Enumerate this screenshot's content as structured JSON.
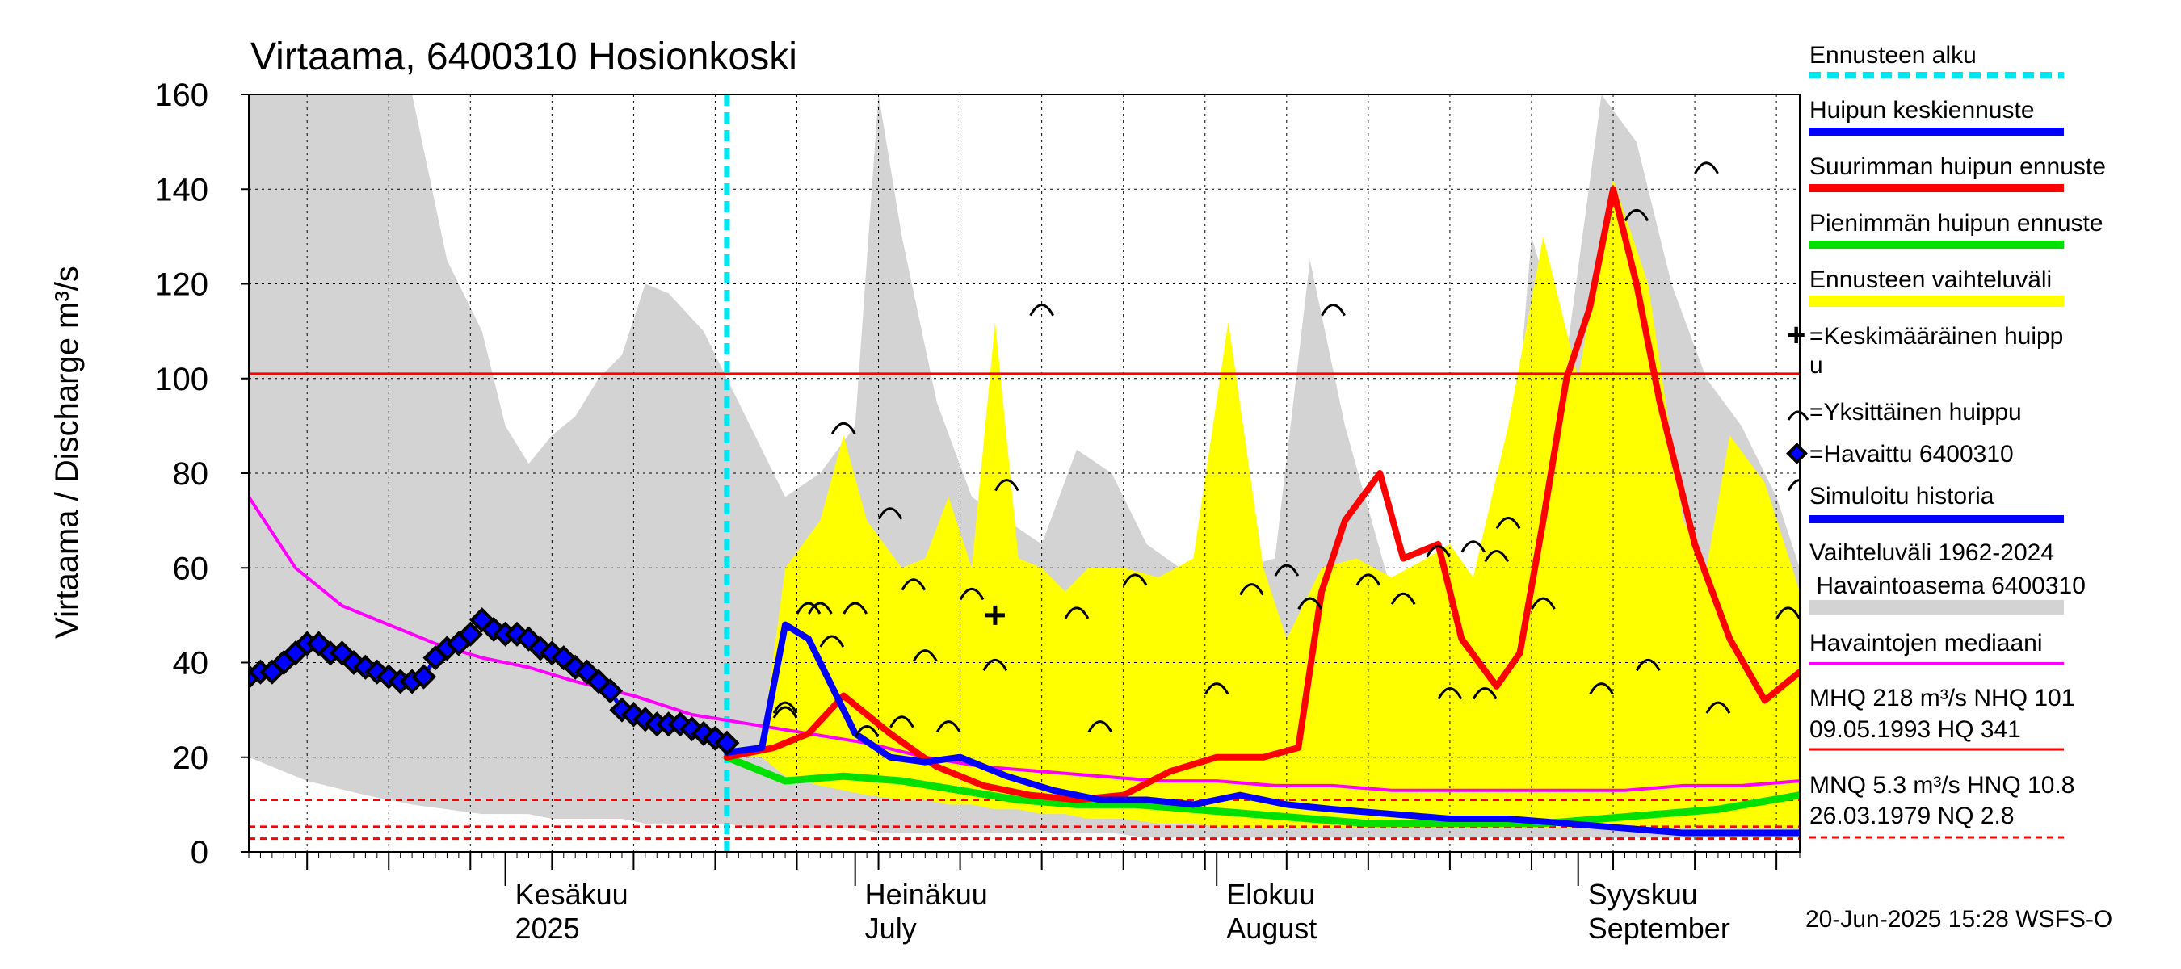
{
  "chart_data": {
    "type": "line",
    "title": "Virtaama, 6400310 Hosionkoski",
    "ylabel": "Virtaama / Discharge   m³/s",
    "ylim": [
      0,
      160
    ],
    "yticks": [
      0,
      20,
      40,
      60,
      80,
      100,
      120,
      140,
      160
    ],
    "x_range": [
      "2025-05-10",
      "2025-09-20"
    ],
    "grid": true,
    "forecast_start": "2025-06-20",
    "months": [
      {
        "date": "2025-06-01",
        "line1": "Kesäkuu",
        "line2": "2025"
      },
      {
        "date": "2025-07-01",
        "line1": "Heinäkuu",
        "line2": "July"
      },
      {
        "date": "2025-08-01",
        "line1": "Elokuu",
        "line2": "August"
      },
      {
        "date": "2025-09-01",
        "line1": "Syyskuu",
        "line2": "September"
      }
    ],
    "reference_lines": {
      "hq_solid": 101,
      "nq_dashed": [
        11,
        5.3,
        2.8
      ]
    },
    "series": [
      {
        "key": "history_range",
        "color": "#d3d3d3",
        "x": [
          "2025-05-10",
          "2025-05-15",
          "2025-05-20",
          "2025-05-24",
          "2025-05-27",
          "2025-05-30",
          "2025-06-01",
          "2025-06-03",
          "2025-06-05",
          "2025-06-07",
          "2025-06-09",
          "2025-06-11",
          "2025-06-13",
          "2025-06-15",
          "2025-06-18",
          "2025-06-20",
          "2025-06-22",
          "2025-06-25",
          "2025-06-28",
          "2025-07-01",
          "2025-07-03",
          "2025-07-05",
          "2025-07-08",
          "2025-07-11",
          "2025-07-14",
          "2025-07-17",
          "2025-07-20",
          "2025-07-23",
          "2025-07-26",
          "2025-07-30",
          "2025-08-03",
          "2025-08-06",
          "2025-08-09",
          "2025-08-12",
          "2025-08-16",
          "2025-08-20",
          "2025-08-24",
          "2025-08-26",
          "2025-08-28",
          "2025-08-31",
          "2025-09-03",
          "2025-09-06",
          "2025-09-09",
          "2025-09-12",
          "2025-09-15",
          "2025-09-18",
          "2025-09-20"
        ],
        "upper": [
          160,
          160,
          160,
          160,
          125,
          110,
          90,
          82,
          88,
          92,
          100,
          105,
          120,
          118,
          110,
          100,
          90,
          75,
          80,
          90,
          160,
          130,
          95,
          75,
          70,
          65,
          85,
          80,
          65,
          58,
          60,
          62,
          125,
          90,
          55,
          50,
          55,
          70,
          130,
          105,
          160,
          150,
          120,
          100,
          90,
          75,
          60
        ],
        "lower": [
          20,
          15,
          12,
          10,
          9,
          8,
          8,
          8,
          7,
          7,
          7,
          7,
          6,
          6,
          6,
          6,
          5,
          5,
          5,
          5,
          4,
          4,
          4,
          4,
          4,
          4,
          4,
          4,
          3,
          3,
          3,
          3,
          3,
          3,
          3,
          3,
          3,
          3,
          3,
          3,
          3,
          3,
          3,
          3,
          3,
          3,
          3
        ]
      },
      {
        "key": "forecast_range",
        "color": "#ffff00",
        "x": [
          "2025-06-20",
          "2025-06-23",
          "2025-06-25",
          "2025-06-28",
          "2025-06-30",
          "2025-07-02",
          "2025-07-05",
          "2025-07-07",
          "2025-07-09",
          "2025-07-11",
          "2025-07-13",
          "2025-07-15",
          "2025-07-17",
          "2025-07-19",
          "2025-07-21",
          "2025-07-24",
          "2025-07-27",
          "2025-07-30",
          "2025-08-02",
          "2025-08-05",
          "2025-08-07",
          "2025-08-10",
          "2025-08-13",
          "2025-08-16",
          "2025-08-19",
          "2025-08-21",
          "2025-08-23",
          "2025-08-26",
          "2025-08-29",
          "2025-09-01",
          "2025-09-04",
          "2025-09-07",
          "2025-09-10",
          "2025-09-12",
          "2025-09-14",
          "2025-09-17",
          "2025-09-20"
        ],
        "upper": [
          20,
          23,
          60,
          70,
          88,
          70,
          60,
          62,
          75,
          60,
          112,
          62,
          60,
          55,
          60,
          60,
          58,
          62,
          112,
          60,
          45,
          60,
          62,
          58,
          62,
          65,
          58,
          90,
          130,
          100,
          142,
          120,
          70,
          60,
          88,
          78,
          55
        ],
        "lower": [
          20,
          20,
          16,
          14,
          13,
          12,
          11,
          11,
          10,
          10,
          9,
          9,
          8,
          8,
          7,
          7,
          6,
          6,
          5,
          5,
          5,
          5,
          5,
          5,
          5,
          5,
          5,
          5,
          5,
          5,
          5,
          5,
          5,
          5,
          5,
          5,
          5
        ]
      },
      {
        "key": "observed_median",
        "color": "#ff00ff",
        "x": [
          "2025-05-10",
          "2025-05-14",
          "2025-05-18",
          "2025-05-22",
          "2025-05-26",
          "2025-05-30",
          "2025-06-03",
          "2025-06-07",
          "2025-06-12",
          "2025-06-17",
          "2025-06-22",
          "2025-06-27",
          "2025-07-02",
          "2025-07-07",
          "2025-07-12",
          "2025-07-17",
          "2025-07-22",
          "2025-07-27",
          "2025-08-01",
          "2025-08-06",
          "2025-08-11",
          "2025-08-16",
          "2025-08-21",
          "2025-08-26",
          "2025-08-31",
          "2025-09-05",
          "2025-09-10",
          "2025-09-15",
          "2025-09-20"
        ],
        "y": [
          75,
          60,
          52,
          48,
          44,
          41,
          39,
          36,
          33,
          29,
          27,
          25,
          23,
          20,
          18,
          17,
          16,
          15,
          15,
          14,
          14,
          13,
          13,
          13,
          13,
          13,
          14,
          14,
          15
        ]
      },
      {
        "key": "max_peak_forecast",
        "color": "#ff0000",
        "x": [
          "2025-06-20",
          "2025-06-24",
          "2025-06-27",
          "2025-06-30",
          "2025-07-04",
          "2025-07-08",
          "2025-07-12",
          "2025-07-16",
          "2025-07-20",
          "2025-07-24",
          "2025-07-28",
          "2025-08-01",
          "2025-08-05",
          "2025-08-08",
          "2025-08-10",
          "2025-08-12",
          "2025-08-15",
          "2025-08-17",
          "2025-08-20",
          "2025-08-22",
          "2025-08-25",
          "2025-08-27",
          "2025-08-29",
          "2025-08-31",
          "2025-09-02",
          "2025-09-04",
          "2025-09-06",
          "2025-09-08",
          "2025-09-11",
          "2025-09-14",
          "2025-09-17",
          "2025-09-20"
        ],
        "y": [
          20,
          22,
          25,
          33,
          25,
          18,
          14,
          12,
          11,
          12,
          17,
          20,
          20,
          22,
          55,
          70,
          80,
          62,
          65,
          45,
          35,
          42,
          70,
          100,
          115,
          140,
          120,
          95,
          65,
          45,
          32,
          38
        ]
      },
      {
        "key": "min_peak_forecast",
        "color": "#00e000",
        "x": [
          "2025-06-20",
          "2025-06-25",
          "2025-06-30",
          "2025-07-05",
          "2025-07-10",
          "2025-07-15",
          "2025-07-20",
          "2025-07-25",
          "2025-07-30",
          "2025-08-04",
          "2025-08-09",
          "2025-08-14",
          "2025-08-19",
          "2025-08-24",
          "2025-08-29",
          "2025-09-03",
          "2025-09-08",
          "2025-09-13",
          "2025-09-20"
        ],
        "y": [
          20,
          15,
          16,
          15,
          13,
          11,
          10,
          10,
          9,
          8,
          7,
          6,
          6,
          6,
          6,
          7,
          8,
          9,
          12
        ]
      },
      {
        "key": "mean_peak_forecast",
        "color": "#0000ff",
        "x": [
          "2025-06-20",
          "2025-06-23",
          "2025-06-25",
          "2025-06-27",
          "2025-06-29",
          "2025-07-01",
          "2025-07-04",
          "2025-07-07",
          "2025-07-10",
          "2025-07-14",
          "2025-07-18",
          "2025-07-22",
          "2025-07-26",
          "2025-07-30",
          "2025-08-03",
          "2025-08-07",
          "2025-08-11",
          "2025-08-16",
          "2025-08-21",
          "2025-08-26",
          "2025-08-31",
          "2025-09-05",
          "2025-09-10",
          "2025-09-15",
          "2025-09-20"
        ],
        "y": [
          21,
          22,
          48,
          45,
          35,
          25,
          20,
          19,
          20,
          16,
          13,
          11,
          11,
          10,
          12,
          10,
          9,
          8,
          7,
          7,
          6,
          5,
          4,
          4,
          4
        ]
      },
      {
        "key": "observed",
        "color": "#0000ff",
        "x": [
          "2025-05-10",
          "2025-05-11",
          "2025-05-12",
          "2025-05-13",
          "2025-05-14",
          "2025-05-15",
          "2025-05-16",
          "2025-05-17",
          "2025-05-18",
          "2025-05-19",
          "2025-05-20",
          "2025-05-21",
          "2025-05-22",
          "2025-05-23",
          "2025-05-24",
          "2025-05-25",
          "2025-05-26",
          "2025-05-27",
          "2025-05-28",
          "2025-05-29",
          "2025-05-30",
          "2025-05-31",
          "2025-06-01",
          "2025-06-02",
          "2025-06-03",
          "2025-06-04",
          "2025-06-05",
          "2025-06-06",
          "2025-06-07",
          "2025-06-08",
          "2025-06-09",
          "2025-06-10",
          "2025-06-11",
          "2025-06-12",
          "2025-06-13",
          "2025-06-14",
          "2025-06-15",
          "2025-06-16",
          "2025-06-17",
          "2025-06-18",
          "2025-06-19",
          "2025-06-20"
        ],
        "y": [
          37,
          38,
          38,
          40,
          42,
          44,
          44,
          42,
          42,
          40,
          39,
          38,
          37,
          36,
          36,
          37,
          41,
          43,
          44,
          46,
          49,
          47,
          46,
          46,
          45,
          43,
          42,
          41,
          39,
          38,
          36,
          34,
          30,
          29,
          28,
          27,
          27,
          27,
          26,
          25,
          24,
          23
        ]
      },
      {
        "key": "single_peaks",
        "x": [
          "2025-06-25",
          "2025-06-25",
          "2025-06-27",
          "2025-06-28",
          "2025-06-29",
          "2025-06-30",
          "2025-07-01",
          "2025-07-02",
          "2025-07-04",
          "2025-07-05",
          "2025-07-06",
          "2025-07-07",
          "2025-07-09",
          "2025-07-11",
          "2025-07-13",
          "2025-07-14",
          "2025-07-17",
          "2025-07-20",
          "2025-07-22",
          "2025-07-25",
          "2025-08-01",
          "2025-08-04",
          "2025-08-07",
          "2025-08-09",
          "2025-08-09",
          "2025-08-11",
          "2025-08-14",
          "2025-08-17",
          "2025-08-20",
          "2025-08-21",
          "2025-08-23",
          "2025-08-24",
          "2025-08-25",
          "2025-08-26",
          "2025-08-29",
          "2025-09-03",
          "2025-09-06",
          "2025-09-07",
          "2025-09-12",
          "2025-09-13",
          "2025-09-19",
          "2025-09-20"
        ],
        "y": [
          30,
          29,
          51,
          51,
          44,
          89,
          51,
          25,
          71,
          27,
          56,
          41,
          26,
          54,
          39,
          77,
          114,
          50,
          26,
          57,
          34,
          55,
          59,
          52,
          52,
          114,
          57,
          53,
          63,
          33,
          64,
          33,
          62,
          69,
          52,
          34,
          134,
          39,
          144,
          30,
          50,
          77
        ]
      },
      {
        "key": "mean_peak_marker",
        "x": [
          "2025-07-13"
        ],
        "y": [
          50
        ]
      }
    ]
  },
  "legend": {
    "forecast_start": "Ennusteen alku",
    "mean_peak": "Huipun keskiennuste",
    "max_peak": "Suurimman huipun ennuste",
    "min_peak": "Pienimmän huipun ennuste",
    "range": "Ennusteen vaihteluväli",
    "mean_peak_marker_1": "=Keskimääräinen huipp",
    "mean_peak_marker_2": "u",
    "single_peak": "=Yksittäinen huippu",
    "observed": "=Havaittu 6400310",
    "simulated": "Simuloitu historia",
    "history_1": "Vaihteluväli 1962-2024",
    "history_2": " Havaintoasema 6400310",
    "median": "Havaintojen mediaani",
    "mhq_1": "MHQ  218 m³/s NHQ  101",
    "mhq_2": "09.05.1993 HQ  341",
    "mnq_1": "MNQ  5.3 m³/s HNQ 10.8",
    "mnq_2": "26.03.1979 NQ  2.8",
    "colors": {
      "forecast_start": "#00e5ee",
      "mean_peak": "#0000ff",
      "max_peak": "#ff0000",
      "min_peak": "#00e000",
      "range": "#ffff00",
      "simulated": "#0000ff",
      "history": "#d3d3d3",
      "median": "#ff00ff",
      "mhq": "#ff0000",
      "mnq": "#ff0000"
    }
  },
  "footer": "20-Jun-2025 15:28 WSFS-O"
}
